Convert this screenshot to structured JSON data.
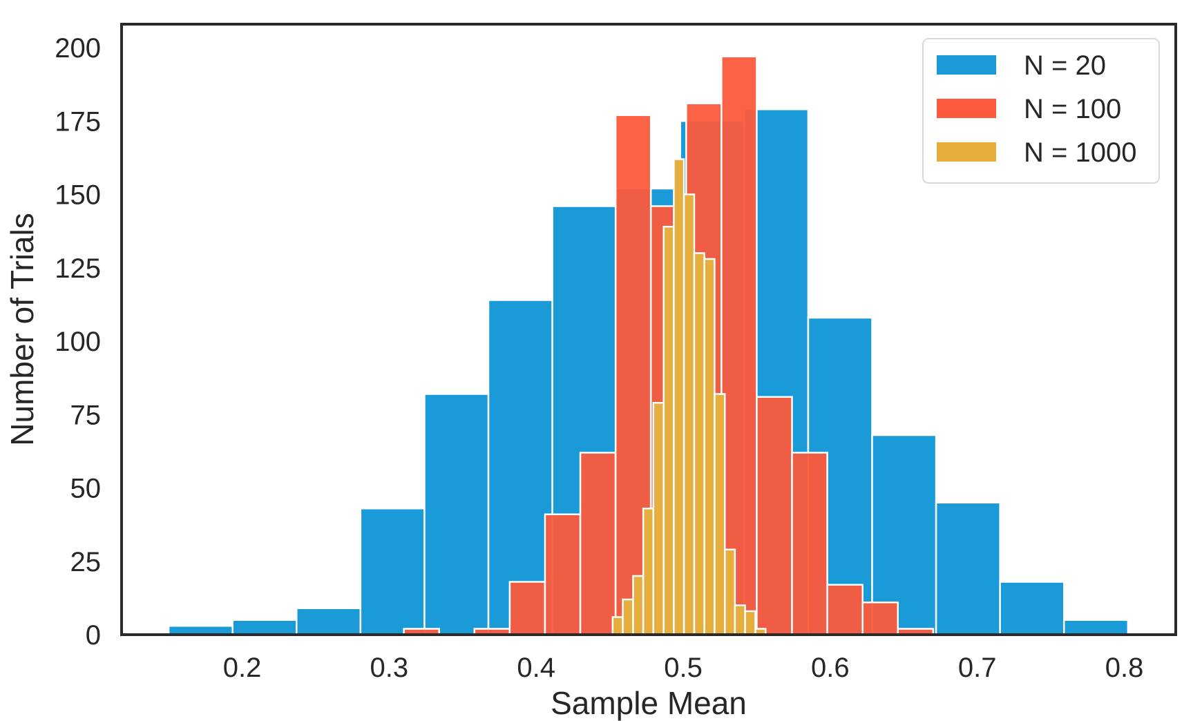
{
  "chart_data": {
    "type": "bar",
    "subtype": "overlaid-histogram",
    "title": "",
    "xlabel": "Sample Mean",
    "ylabel": "Number of Trials",
    "xlim": [
      0.118,
      0.835
    ],
    "ylim": [
      0,
      208
    ],
    "xticks": [
      0.2,
      0.3,
      0.4,
      0.5,
      0.6,
      0.7,
      0.8
    ],
    "xtick_labels": [
      "0.2",
      "0.3",
      "0.4",
      "0.5",
      "0.6",
      "0.7",
      "0.8"
    ],
    "yticks": [
      0,
      25,
      50,
      75,
      100,
      125,
      150,
      175,
      200
    ],
    "ytick_labels": [
      "0",
      "25",
      "50",
      "75",
      "100",
      "125",
      "150",
      "175",
      "200"
    ],
    "grid": false,
    "legend": "top-right",
    "series": [
      {
        "name": "N = 20",
        "color": "#1b9ad8",
        "bin_edges": [
          0.15,
          0.1935,
          0.237,
          0.2805,
          0.324,
          0.3675,
          0.411,
          0.4545,
          0.498,
          0.5415,
          0.585,
          0.6285,
          0.672,
          0.7155,
          0.759,
          0.8025
        ],
        "values": [
          3,
          5,
          9,
          43,
          82,
          114,
          146,
          152,
          175,
          179,
          108,
          68,
          45,
          18,
          5
        ]
      },
      {
        "name": "N = 100",
        "color": "#fb5a3c",
        "opacity": 0.95,
        "bin_edges": [
          0.31,
          0.334,
          0.358,
          0.382,
          0.406,
          0.43,
          0.454,
          0.478,
          0.502,
          0.526,
          0.55,
          0.574,
          0.598,
          0.622,
          0.646,
          0.67
        ],
        "values": [
          2,
          0,
          2,
          18,
          41,
          62,
          177,
          146,
          181,
          197,
          81,
          62,
          17,
          11,
          2
        ]
      },
      {
        "name": "N = 1000",
        "color": "#e6ad3f",
        "bin_edges": [
          0.452,
          0.4589,
          0.4659,
          0.4728,
          0.4797,
          0.4867,
          0.4936,
          0.5005,
          0.5075,
          0.5144,
          0.5213,
          0.5283,
          0.5352,
          0.5421,
          0.5491,
          0.556
        ],
        "values": [
          6,
          12,
          20,
          43,
          79,
          139,
          162,
          150,
          130,
          128,
          82,
          29,
          10,
          8,
          2
        ]
      }
    ]
  }
}
